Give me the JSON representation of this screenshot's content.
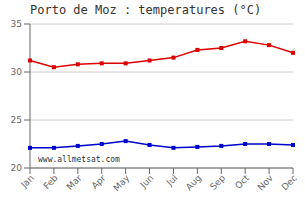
{
  "chart_data": {
    "type": "line",
    "title": "Porto de Moz : temperatures (°C)",
    "categories": [
      "Jan",
      "Feb",
      "Mar",
      "Apr",
      "May",
      "Jun",
      "Jul",
      "Aug",
      "Sep",
      "Oct",
      "Nov",
      "Dec"
    ],
    "series": [
      {
        "color": "#dd0000",
        "marker": "square",
        "values": [
          31.2,
          30.5,
          30.8,
          30.9,
          30.9,
          31.2,
          31.5,
          32.3,
          32.5,
          33.2,
          32.8,
          32.0
        ]
      },
      {
        "color": "#0000cc",
        "marker": "square",
        "values": [
          22.1,
          22.1,
          22.3,
          22.5,
          22.8,
          22.4,
          22.1,
          22.2,
          22.3,
          22.5,
          22.5,
          22.4
        ]
      }
    ],
    "ylim": [
      20,
      35
    ],
    "yticks": [
      20,
      25,
      30,
      35
    ],
    "grid": "y",
    "annotations": [
      "www.allmetsat.com"
    ]
  }
}
